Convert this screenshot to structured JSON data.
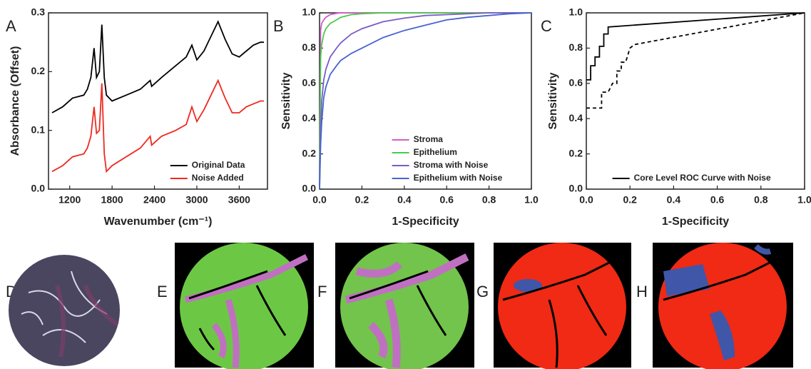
{
  "chart_data": [
    {
      "type": "line",
      "label": "A",
      "xlabel": "Wavenumber (cm⁻¹)",
      "ylabel": "Absorbance (Offset)",
      "xlim": [
        900,
        4000
      ],
      "xticks": [
        1200,
        1800,
        2400,
        3000,
        3600
      ],
      "ylim": [
        0,
        0.3
      ],
      "yticks": [
        {
          "value": 0,
          "label": "0.0"
        },
        0.1,
        0.2,
        0.3
      ],
      "legend": "lower right",
      "x": [
        950,
        1100,
        1240,
        1400,
        1450,
        1500,
        1545,
        1580,
        1620,
        1655,
        1690,
        1720,
        1800,
        2000,
        2200,
        2340,
        2360,
        2500,
        2700,
        2850,
        2930,
        3000,
        3100,
        3200,
        3300,
        3400,
        3500,
        3600,
        3700,
        3800,
        3900,
        3950
      ],
      "series": [
        {
          "name": "Original Data",
          "color": "#000000",
          "values": [
            0.13,
            0.14,
            0.155,
            0.16,
            0.17,
            0.19,
            0.24,
            0.19,
            0.2,
            0.28,
            0.19,
            0.16,
            0.15,
            0.16,
            0.17,
            0.185,
            0.175,
            0.19,
            0.21,
            0.225,
            0.245,
            0.22,
            0.235,
            0.26,
            0.285,
            0.255,
            0.23,
            0.225,
            0.235,
            0.245,
            0.25,
            0.25
          ]
        },
        {
          "name": "Noise Added",
          "color": "#ee2a1f",
          "values": [
            0.03,
            0.04,
            0.055,
            0.06,
            0.07,
            0.09,
            0.14,
            0.095,
            0.1,
            0.18,
            0.06,
            0.03,
            0.04,
            0.055,
            0.07,
            0.09,
            0.075,
            0.09,
            0.1,
            0.11,
            0.14,
            0.115,
            0.135,
            0.16,
            0.185,
            0.155,
            0.13,
            0.13,
            0.14,
            0.145,
            0.15,
            0.15
          ]
        }
      ]
    },
    {
      "type": "line",
      "label": "B",
      "xlabel": "1-Specificity",
      "ylabel": "Sensitivity",
      "xlim": [
        0,
        1
      ],
      "xticks": [
        {
          "value": 0,
          "label": "0.0"
        },
        0.2,
        0.4,
        0.6,
        0.8,
        {
          "value": 1,
          "label": "1.0"
        }
      ],
      "ylim": [
        0,
        1
      ],
      "yticks": [
        {
          "value": 0,
          "label": "0.0"
        },
        0.2,
        0.4,
        0.6,
        0.8,
        {
          "value": 1,
          "label": "1.0"
        }
      ],
      "legend": "lower right",
      "x": [
        0,
        0.005,
        0.01,
        0.02,
        0.03,
        0.05,
        0.08,
        0.1,
        0.15,
        0.2,
        0.3,
        0.4,
        0.5,
        0.6,
        0.7,
        0.8,
        0.9,
        1
      ],
      "series": [
        {
          "name": "Stroma",
          "color": "#d05fc8",
          "values": [
            0,
            0.9,
            0.94,
            0.96,
            0.975,
            0.99,
            0.997,
            1,
            1,
            1,
            1,
            1,
            1,
            1,
            1,
            1,
            1,
            1
          ]
        },
        {
          "name": "Epithelium",
          "color": "#4cc94c",
          "values": [
            0,
            0.75,
            0.82,
            0.88,
            0.91,
            0.94,
            0.96,
            0.975,
            0.99,
            0.995,
            1,
            1,
            1,
            1,
            1,
            1,
            1,
            1
          ]
        },
        {
          "name": "Stroma with Noise",
          "color": "#7b5cc4",
          "values": [
            0,
            0.35,
            0.5,
            0.62,
            0.68,
            0.75,
            0.8,
            0.83,
            0.88,
            0.91,
            0.95,
            0.97,
            0.985,
            0.99,
            0.995,
            1,
            1,
            1
          ]
        },
        {
          "name": "Epithelium with Noise",
          "color": "#4863d0",
          "values": [
            0,
            0.25,
            0.38,
            0.52,
            0.58,
            0.65,
            0.7,
            0.73,
            0.77,
            0.8,
            0.86,
            0.9,
            0.93,
            0.96,
            0.975,
            0.985,
            0.995,
            1
          ]
        }
      ]
    },
    {
      "type": "line",
      "label": "C",
      "xlabel": "1-Specificity",
      "ylabel": "Sensitivity",
      "xlim": [
        0,
        1
      ],
      "xticks": [
        {
          "value": 0,
          "label": "0.0"
        },
        0.2,
        0.4,
        0.6,
        0.8,
        {
          "value": 1,
          "label": "1.0"
        }
      ],
      "ylim": [
        0,
        1
      ],
      "yticks": [
        {
          "value": 0,
          "label": "0.0"
        },
        0.2,
        0.4,
        0.6,
        0.8,
        {
          "value": 1,
          "label": "1.0"
        }
      ],
      "legend": "lower right",
      "series": [
        {
          "name": "Core Level ROC Curve with Noise",
          "color": "#000000",
          "x": [
            0,
            0.02,
            0.02,
            0.04,
            0.04,
            0.06,
            0.06,
            0.08,
            0.08,
            0.1,
            0.1,
            1
          ],
          "values": [
            0.62,
            0.62,
            0.7,
            0.7,
            0.75,
            0.75,
            0.81,
            0.81,
            0.88,
            0.88,
            0.92,
            1
          ]
        },
        {
          "color": "#000000",
          "dash": true,
          "x": [
            0,
            0.07,
            0.07,
            0.1,
            0.12,
            0.14,
            0.14,
            0.16,
            0.16,
            0.18,
            0.2,
            0.22,
            1
          ],
          "values": [
            0.46,
            0.46,
            0.55,
            0.55,
            0.6,
            0.6,
            0.67,
            0.67,
            0.72,
            0.72,
            0.8,
            0.82,
            1
          ]
        }
      ]
    }
  ],
  "panels": [
    "D",
    "E",
    "F",
    "G",
    "H"
  ]
}
